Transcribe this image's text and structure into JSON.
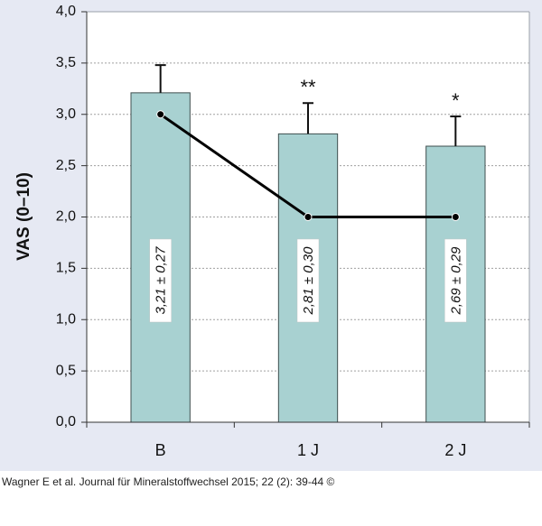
{
  "chart_data": {
    "type": "bar",
    "ylabel": "VAS (0–10)",
    "ylim": [
      0,
      4
    ],
    "yticks": [
      "0,0",
      "0,5",
      "1,0",
      "1,5",
      "2,0",
      "2,5",
      "3,0",
      "3,5",
      "4,0"
    ],
    "categories": [
      "B",
      "1 J",
      "2 J"
    ],
    "series": [
      {
        "name": "mean",
        "values": [
          3.21,
          2.81,
          2.69
        ],
        "errors": [
          0.27,
          0.3,
          0.29
        ]
      },
      {
        "name": "median",
        "type": "line",
        "values": [
          3.0,
          2.0,
          2.0
        ]
      }
    ],
    "bar_labels": [
      "3,21 ± 0,27",
      "2,81 ± 0,30",
      "2,69 ± 0,29"
    ],
    "significance": [
      "",
      "**",
      "*"
    ],
    "grid": true,
    "colors": {
      "bar_fill": "#a8d1d1",
      "bar_stroke": "#3f4f4f",
      "line": "#000000",
      "plot_bg": "#ffffff",
      "figure_bg": "#e6e9f3",
      "grid": "#a0a0a0"
    }
  },
  "citation": "Wagner E et al. Journal für Mineralstoffwechsel 2015; 22 (2): 39-44 ©"
}
